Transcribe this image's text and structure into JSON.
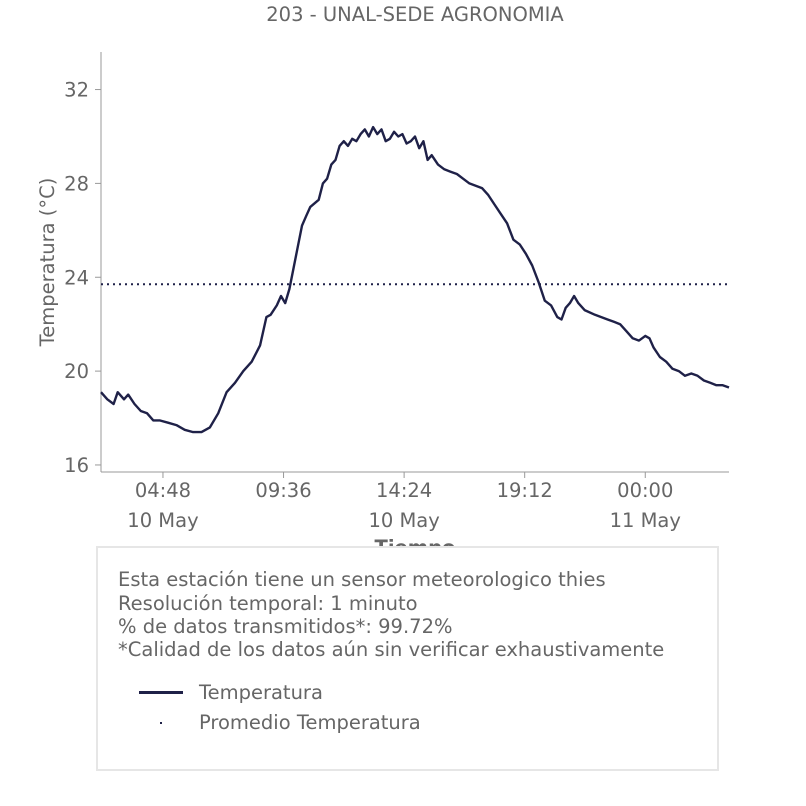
{
  "chart_data": {
    "type": "line",
    "title": "203 - UNAL-SEDE AGRONOMIA",
    "xlabel": "Tiempo",
    "ylabel": "Temperatura (°C)",
    "x_start": "2024-05-10T02:20",
    "x_end": "2024-05-11T03:20",
    "x_ticks": [
      {
        "time": "04:48",
        "date": "10 May",
        "at": "2024-05-10T04:48"
      },
      {
        "time": "09:36",
        "date": "",
        "at": "2024-05-10T09:36"
      },
      {
        "time": "14:24",
        "date": "10 May",
        "at": "2024-05-10T14:24"
      },
      {
        "time": "19:12",
        "date": "",
        "at": "2024-05-10T19:12"
      },
      {
        "time": "00:00",
        "date": "11 May",
        "at": "2024-05-11T00:00"
      }
    ],
    "yticks": [
      16,
      20,
      24,
      28,
      32
    ],
    "ylim": [
      15.7,
      33.6
    ],
    "grid": false,
    "series": [
      {
        "name": "Temperatura",
        "color": "#1f2148",
        "style": "solid",
        "points": [
          [
            "2024-05-10T02:20",
            19.1
          ],
          [
            "2024-05-10T02:35",
            18.8
          ],
          [
            "2024-05-10T02:50",
            18.6
          ],
          [
            "2024-05-10T03:00",
            19.1
          ],
          [
            "2024-05-10T03:15",
            18.8
          ],
          [
            "2024-05-10T03:25",
            19.0
          ],
          [
            "2024-05-10T03:40",
            18.6
          ],
          [
            "2024-05-10T03:55",
            18.3
          ],
          [
            "2024-05-10T04:10",
            18.2
          ],
          [
            "2024-05-10T04:25",
            17.9
          ],
          [
            "2024-05-10T04:40",
            17.9
          ],
          [
            "2024-05-10T05:00",
            17.8
          ],
          [
            "2024-05-10T05:20",
            17.7
          ],
          [
            "2024-05-10T05:40",
            17.5
          ],
          [
            "2024-05-10T06:00",
            17.4
          ],
          [
            "2024-05-10T06:20",
            17.4
          ],
          [
            "2024-05-10T06:40",
            17.6
          ],
          [
            "2024-05-10T07:00",
            18.2
          ],
          [
            "2024-05-10T07:20",
            19.1
          ],
          [
            "2024-05-10T07:40",
            19.5
          ],
          [
            "2024-05-10T08:00",
            20.0
          ],
          [
            "2024-05-10T08:20",
            20.4
          ],
          [
            "2024-05-10T08:40",
            21.1
          ],
          [
            "2024-05-10T08:55",
            22.3
          ],
          [
            "2024-05-10T09:05",
            22.4
          ],
          [
            "2024-05-10T09:20",
            22.8
          ],
          [
            "2024-05-10T09:30",
            23.2
          ],
          [
            "2024-05-10T09:40",
            22.9
          ],
          [
            "2024-05-10T09:50",
            23.5
          ],
          [
            "2024-05-10T10:00",
            24.4
          ],
          [
            "2024-05-10T10:10",
            25.3
          ],
          [
            "2024-05-10T10:20",
            26.2
          ],
          [
            "2024-05-10T10:30",
            26.6
          ],
          [
            "2024-05-10T10:40",
            27.0
          ],
          [
            "2024-05-10T11:00",
            27.3
          ],
          [
            "2024-05-10T11:10",
            28.0
          ],
          [
            "2024-05-10T11:20",
            28.2
          ],
          [
            "2024-05-10T11:30",
            28.8
          ],
          [
            "2024-05-10T11:40",
            29.0
          ],
          [
            "2024-05-10T11:50",
            29.6
          ],
          [
            "2024-05-10T12:00",
            29.8
          ],
          [
            "2024-05-10T12:10",
            29.6
          ],
          [
            "2024-05-10T12:20",
            29.9
          ],
          [
            "2024-05-10T12:30",
            29.8
          ],
          [
            "2024-05-10T12:40",
            30.1
          ],
          [
            "2024-05-10T12:50",
            30.3
          ],
          [
            "2024-05-10T13:00",
            30.0
          ],
          [
            "2024-05-10T13:10",
            30.4
          ],
          [
            "2024-05-10T13:20",
            30.1
          ],
          [
            "2024-05-10T13:30",
            30.3
          ],
          [
            "2024-05-10T13:40",
            29.8
          ],
          [
            "2024-05-10T13:50",
            29.9
          ],
          [
            "2024-05-10T14:00",
            30.2
          ],
          [
            "2024-05-10T14:10",
            30.0
          ],
          [
            "2024-05-10T14:20",
            30.1
          ],
          [
            "2024-05-10T14:30",
            29.7
          ],
          [
            "2024-05-10T14:40",
            29.8
          ],
          [
            "2024-05-10T14:50",
            30.0
          ],
          [
            "2024-05-10T15:00",
            29.5
          ],
          [
            "2024-05-10T15:10",
            29.8
          ],
          [
            "2024-05-10T15:20",
            29.0
          ],
          [
            "2024-05-10T15:30",
            29.2
          ],
          [
            "2024-05-10T15:45",
            28.8
          ],
          [
            "2024-05-10T16:00",
            28.6
          ],
          [
            "2024-05-10T16:15",
            28.5
          ],
          [
            "2024-05-10T16:30",
            28.4
          ],
          [
            "2024-05-10T16:45",
            28.2
          ],
          [
            "2024-05-10T17:00",
            28.0
          ],
          [
            "2024-05-10T17:15",
            27.9
          ],
          [
            "2024-05-10T17:30",
            27.8
          ],
          [
            "2024-05-10T17:45",
            27.5
          ],
          [
            "2024-05-10T18:00",
            27.1
          ],
          [
            "2024-05-10T18:15",
            26.7
          ],
          [
            "2024-05-10T18:30",
            26.3
          ],
          [
            "2024-05-10T18:45",
            25.6
          ],
          [
            "2024-05-10T19:00",
            25.4
          ],
          [
            "2024-05-10T19:15",
            25.0
          ],
          [
            "2024-05-10T19:30",
            24.5
          ],
          [
            "2024-05-10T19:45",
            23.8
          ],
          [
            "2024-05-10T20:00",
            23.0
          ],
          [
            "2024-05-10T20:15",
            22.8
          ],
          [
            "2024-05-10T20:30",
            22.3
          ],
          [
            "2024-05-10T20:40",
            22.2
          ],
          [
            "2024-05-10T20:50",
            22.7
          ],
          [
            "2024-05-10T21:00",
            22.9
          ],
          [
            "2024-05-10T21:10",
            23.2
          ],
          [
            "2024-05-10T21:20",
            22.9
          ],
          [
            "2024-05-10T21:35",
            22.6
          ],
          [
            "2024-05-10T22:00",
            22.4
          ],
          [
            "2024-05-10T22:15",
            22.3
          ],
          [
            "2024-05-10T22:30",
            22.2
          ],
          [
            "2024-05-10T22:45",
            22.1
          ],
          [
            "2024-05-10T23:00",
            22.0
          ],
          [
            "2024-05-10T23:15",
            21.7
          ],
          [
            "2024-05-10T23:30",
            21.4
          ],
          [
            "2024-05-10T23:45",
            21.3
          ],
          [
            "2024-05-11T00:00",
            21.5
          ],
          [
            "2024-05-11T00:10",
            21.4
          ],
          [
            "2024-05-11T00:20",
            21.0
          ],
          [
            "2024-05-11T00:35",
            20.6
          ],
          [
            "2024-05-11T00:50",
            20.4
          ],
          [
            "2024-05-11T01:05",
            20.1
          ],
          [
            "2024-05-11T01:20",
            20.0
          ],
          [
            "2024-05-11T01:35",
            19.8
          ],
          [
            "2024-05-11T01:50",
            19.9
          ],
          [
            "2024-05-11T02:05",
            19.8
          ],
          [
            "2024-05-11T02:20",
            19.6
          ],
          [
            "2024-05-11T02:35",
            19.5
          ],
          [
            "2024-05-11T02:50",
            19.4
          ],
          [
            "2024-05-11T03:05",
            19.4
          ],
          [
            "2024-05-11T03:20",
            19.3
          ]
        ]
      },
      {
        "name": "Promedio Temperatura",
        "color": "#1f2148",
        "style": "dotted",
        "constant": 23.7
      }
    ],
    "legend_position": "bottom-left"
  },
  "info": {
    "line1": "Esta estación tiene un sensor meteorologico thies",
    "line2": "Resolución temporal: 1 minuto",
    "line3": "% de datos transmitidos*: 99.72%",
    "line4": "*Calidad de los datos aún sin verificar exhaustivamente"
  },
  "legend": {
    "item1": "Temperatura",
    "item2": "Promedio Temperatura"
  }
}
